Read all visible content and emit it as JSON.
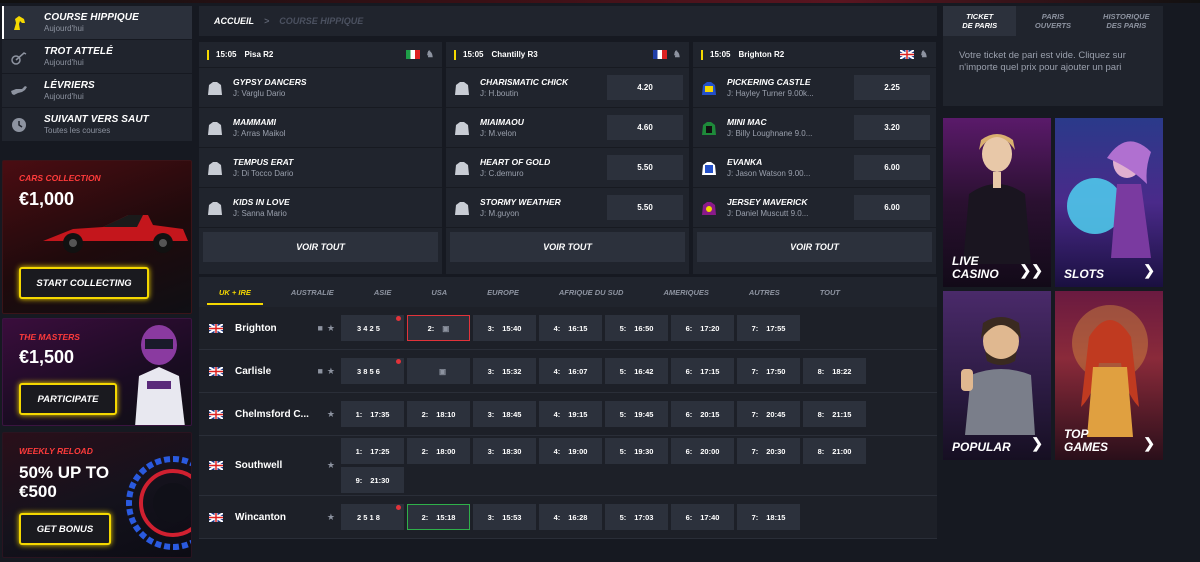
{
  "sidebar": {
    "items": [
      {
        "label": "COURSE HIPPIQUE",
        "sub": "Aujourd'hui",
        "icon": "horse-head-icon"
      },
      {
        "label": "TROT ATTELÉ",
        "sub": "Aujourd'hui",
        "icon": "harness-trot-icon"
      },
      {
        "label": "LÉVRIERS",
        "sub": "Aujourd'hui",
        "icon": "greyhound-icon"
      },
      {
        "label": "SUIVANT VERS SAUT",
        "sub": "Toutes les courses",
        "icon": "clock-icon"
      }
    ]
  },
  "promos": [
    {
      "tag": "CARS COLLECTION",
      "value": "€1,000",
      "button": "START COLLECTING"
    },
    {
      "tag": "THE MASTERS",
      "value": "€1,500",
      "button": "PARTICIPATE"
    },
    {
      "tag": "WEEKLY RELOAD",
      "value": "50% UP TO\n€500",
      "value_line1": "50% UP TO",
      "value_line2": "€500",
      "button": "GET BONUS"
    }
  ],
  "breadcrumb": {
    "home": "ACCUEIL",
    "sep": ">",
    "current": "COURSE HIPPIQUE"
  },
  "race_cards": [
    {
      "time": "15:05",
      "name": "Pisa R2",
      "flag": "italy-flag",
      "runners": [
        {
          "name": "GYPSY DANCERS",
          "jockey": "J: Varglu Dario",
          "odd": ""
        },
        {
          "name": "MAMMAMI",
          "jockey": "J: Arras Maikol",
          "odd": ""
        },
        {
          "name": "TEMPUS ERAT",
          "jockey": "J: Di Tocco Dario",
          "odd": ""
        },
        {
          "name": "KIDS IN LOVE",
          "jockey": "J: Sanna Mario",
          "odd": ""
        }
      ],
      "more": "VOIR TOUT"
    },
    {
      "time": "15:05",
      "name": "Chantilly R3",
      "flag": "france-flag",
      "runners": [
        {
          "name": "CHARISMATIC CHICK",
          "jockey": "J: H.boutin",
          "odd": "4.20"
        },
        {
          "name": "MIAIMAOU",
          "jockey": "J: M.velon",
          "odd": "4.60"
        },
        {
          "name": "HEART OF GOLD",
          "jockey": "J: C.demuro",
          "odd": "5.50"
        },
        {
          "name": "STORMY WEATHER",
          "jockey": "J: M.guyon",
          "odd": "5.50"
        }
      ],
      "more": "VOIR TOUT"
    },
    {
      "time": "15:05",
      "name": "Brighton R2",
      "flag": "uk-flag",
      "runners": [
        {
          "name": "PICKERING CASTLE",
          "jockey": "J: Hayley Turner 9.00k...",
          "odd": "2.25"
        },
        {
          "name": "MINI MAC",
          "jockey": "J: Billy Loughnane 9.0...",
          "odd": "3.20"
        },
        {
          "name": "EVANKA",
          "jockey": "J: Jason Watson 9.00...",
          "odd": "6.00"
        },
        {
          "name": "JERSEY MAVERICK",
          "jockey": "J: Daniel Muscutt 9.0...",
          "odd": "6.00"
        }
      ],
      "more": "VOIR TOUT"
    }
  ],
  "region_tabs": [
    "UK + IRE",
    "AUSTRALIE",
    "ASIE",
    "USA",
    "EUROPE",
    "AFRIQUE DU SUD",
    "AMERIQUES",
    "AUTRES",
    "TOUT"
  ],
  "meetings": [
    {
      "name": "Brighton",
      "video": true,
      "slots": [
        {
          "n": "3 4 2 5",
          "t": "",
          "pin": true
        },
        {
          "n": "2:",
          "t": "",
          "lock": true,
          "style": "red"
        },
        {
          "n": "3:",
          "t": "15:40"
        },
        {
          "n": "4:",
          "t": "16:15"
        },
        {
          "n": "5:",
          "t": "16:50"
        },
        {
          "n": "6:",
          "t": "17:20"
        },
        {
          "n": "7:",
          "t": "17:55"
        }
      ]
    },
    {
      "name": "Carlisle",
      "video": true,
      "slots": [
        {
          "n": "3 8 5 6",
          "t": "",
          "pin": true
        },
        {
          "n": "",
          "t": "",
          "lock": true
        },
        {
          "n": "3:",
          "t": "15:32"
        },
        {
          "n": "4:",
          "t": "16:07"
        },
        {
          "n": "5:",
          "t": "16:42"
        },
        {
          "n": "6:",
          "t": "17:15"
        },
        {
          "n": "7:",
          "t": "17:50"
        },
        {
          "n": "8:",
          "t": "18:22"
        }
      ]
    },
    {
      "name": "Chelmsford C...",
      "video": false,
      "slots": [
        {
          "n": "1:",
          "t": "17:35"
        },
        {
          "n": "2:",
          "t": "18:10"
        },
        {
          "n": "3:",
          "t": "18:45"
        },
        {
          "n": "4:",
          "t": "19:15"
        },
        {
          "n": "5:",
          "t": "19:45"
        },
        {
          "n": "6:",
          "t": "20:15"
        },
        {
          "n": "7:",
          "t": "20:45"
        },
        {
          "n": "8:",
          "t": "21:15"
        }
      ]
    },
    {
      "name": "Southwell",
      "video": false,
      "slots": [
        {
          "n": "1:",
          "t": "17:25"
        },
        {
          "n": "2:",
          "t": "18:00"
        },
        {
          "n": "3:",
          "t": "18:30"
        },
        {
          "n": "4:",
          "t": "19:00"
        },
        {
          "n": "5:",
          "t": "19:30"
        },
        {
          "n": "6:",
          "t": "20:00"
        },
        {
          "n": "7:",
          "t": "20:30"
        },
        {
          "n": "8:",
          "t": "21:00"
        },
        {
          "n": "9:",
          "t": "21:30"
        }
      ]
    },
    {
      "name": "Wincanton",
      "video": false,
      "slots": [
        {
          "n": "2 5 1 8",
          "t": "",
          "pin": true
        },
        {
          "n": "2:",
          "t": "15:18",
          "style": "green"
        },
        {
          "n": "3:",
          "t": "15:53"
        },
        {
          "n": "4:",
          "t": "16:28"
        },
        {
          "n": "5:",
          "t": "17:03"
        },
        {
          "n": "6:",
          "t": "17:40"
        },
        {
          "n": "7:",
          "t": "18:15"
        }
      ]
    }
  ],
  "betslip": {
    "tabs": [
      "TICKET DE PARIS",
      "PARIS OUVERTS",
      "HISTORIQUE DES PARIS"
    ],
    "tab_line1": [
      "TICKET",
      "PARIS",
      "HISTORIQUE"
    ],
    "tab_line2": [
      "DE PARIS",
      "OUVERTS",
      "DES PARIS"
    ],
    "empty": "Votre ticket de pari est vide. Cliquez sur n'importe quel prix pour ajouter un pari"
  },
  "games": [
    {
      "label1": "LIVE",
      "label2": "CASINO"
    },
    {
      "label1": "SLOTS",
      "label2": ""
    },
    {
      "label1": "POPULAR",
      "label2": ""
    },
    {
      "label1": "TOP",
      "label2": "GAMES"
    }
  ],
  "colors": {
    "accent": "#f5d800",
    "red": "#e2333a",
    "green": "#2fb04a",
    "panel": "#20242d",
    "bg": "#161921"
  }
}
